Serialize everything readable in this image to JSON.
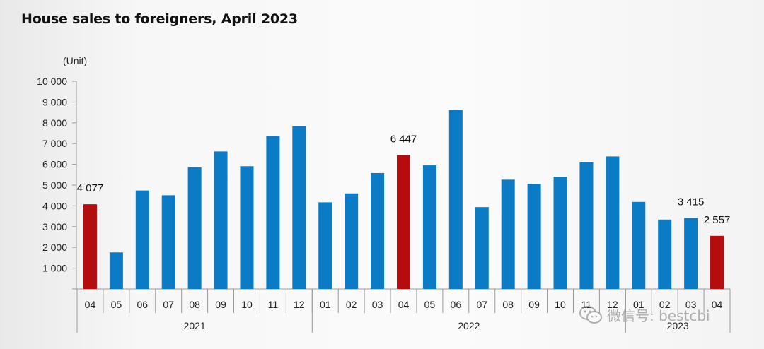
{
  "chart_data": {
    "type": "bar",
    "title": "House sales to foreigners, April 2023",
    "ylabel": "(Unit)",
    "ylim": [
      0,
      10000
    ],
    "yticks": [
      "1 000",
      "2 000",
      "3 000",
      "4 000",
      "5 000",
      "6 000",
      "7 000",
      "8 000",
      "9 000",
      "10 000"
    ],
    "ytick_values": [
      1000,
      2000,
      3000,
      4000,
      5000,
      6000,
      7000,
      8000,
      9000,
      10000
    ],
    "categories": [
      "04",
      "05",
      "06",
      "07",
      "08",
      "09",
      "10",
      "11",
      "12",
      "01",
      "02",
      "03",
      "04",
      "05",
      "06",
      "07",
      "08",
      "09",
      "10",
      "11",
      "12",
      "01",
      "02",
      "03",
      "04"
    ],
    "values": [
      4077,
      1760,
      4740,
      4510,
      5860,
      6620,
      5910,
      7370,
      7840,
      4170,
      4600,
      5580,
      6447,
      5950,
      8620,
      3940,
      5260,
      5060,
      5400,
      6100,
      6380,
      4190,
      3340,
      3415,
      2557
    ],
    "highlight_indices": [
      0,
      12,
      24
    ],
    "data_labels": [
      {
        "index": 0,
        "text": "4 077"
      },
      {
        "index": 12,
        "text": "6 447"
      },
      {
        "index": 23,
        "text": "3 415"
      },
      {
        "index": 24,
        "text": "2 557"
      }
    ],
    "year_groups": [
      {
        "label": "2021",
        "start": 0,
        "end": 8
      },
      {
        "label": "2022",
        "start": 9,
        "end": 20
      },
      {
        "label": "2023",
        "start": 21,
        "end": 24
      }
    ],
    "colors": {
      "bar": "#0a7bc4",
      "highlight": "#b50d0d"
    },
    "grid": false
  },
  "watermark": {
    "text": "微信号: bestcbi",
    "icon": "wechat-icon"
  }
}
